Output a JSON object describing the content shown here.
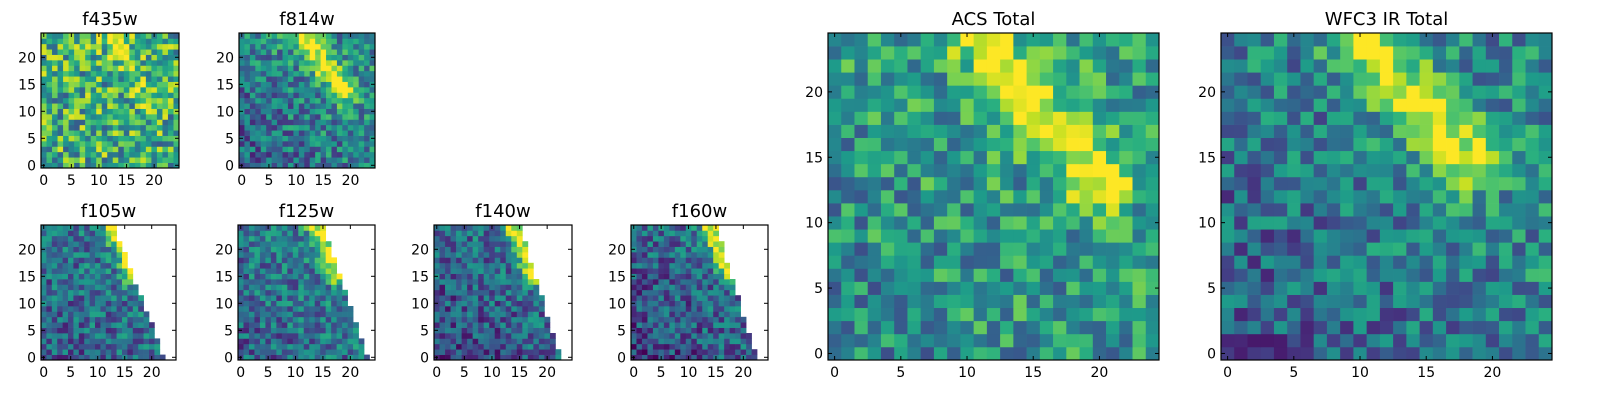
{
  "figure": {
    "background": "#ffffff",
    "colormap": "viridis"
  },
  "chart_data": [
    {
      "type": "heatmap",
      "title": "f435w",
      "colormap": "viridis",
      "grid_size": 25,
      "xlim": [
        -0.5,
        24.5
      ],
      "ylim": [
        -0.5,
        24.5
      ],
      "xticks": [
        0,
        5,
        10,
        15,
        20
      ],
      "xticklabels": [
        "0",
        "5",
        "10",
        "15",
        "20"
      ],
      "yticks": [
        0,
        5,
        10,
        15,
        20
      ],
      "yticklabels": [
        "0",
        "5",
        "10",
        "15",
        "20"
      ],
      "grid": false,
      "masked_region": "none",
      "pattern": "mostly uniform speckled noise (mean ~0.6) with a faint bright diagonal band near (x=14..16, y=18..21)"
    },
    {
      "type": "heatmap",
      "title": "f814w",
      "colormap": "viridis",
      "grid_size": 25,
      "xlim": [
        -0.5,
        24.5
      ],
      "ylim": [
        -0.5,
        24.5
      ],
      "xticks": [
        0,
        5,
        10,
        15,
        20
      ],
      "xticklabels": [
        "0",
        "5",
        "10",
        "15",
        "20"
      ],
      "yticks": [
        0,
        5,
        10,
        15,
        20
      ],
      "yticklabels": [
        "0",
        "5",
        "10",
        "15",
        "20"
      ],
      "grid": false,
      "masked_region": "none",
      "pattern": "bright yellow diagonal arc running from (x=12, y=24) to (x=18, y=14); dimmer teal/blue elsewhere"
    },
    {
      "type": "heatmap",
      "title": "f105w",
      "colormap": "viridis",
      "grid_size": 25,
      "xlim": [
        -0.5,
        24.5
      ],
      "ylim": [
        -0.5,
        24.5
      ],
      "xticks": [
        0,
        5,
        10,
        15,
        20
      ],
      "xticklabels": [
        "0",
        "5",
        "10",
        "15",
        "20"
      ],
      "yticks": [
        0,
        5,
        10,
        15,
        20
      ],
      "yticklabels": [
        "0",
        "5",
        "10",
        "15",
        "20"
      ],
      "grid": false,
      "masked_region": "upper-right triangle blank (white) beyond diagonal from (13,24) to (22,0)",
      "pattern": "yellow band near the diagonal edge around (x=12..16, y=16..23)"
    },
    {
      "type": "heatmap",
      "title": "f125w",
      "colormap": "viridis",
      "grid_size": 25,
      "xlim": [
        -0.5,
        24.5
      ],
      "ylim": [
        -0.5,
        24.5
      ],
      "xticks": [
        0,
        5,
        10,
        15,
        20
      ],
      "xticklabels": [
        "0",
        "5",
        "10",
        "15",
        "20"
      ],
      "yticks": [
        0,
        5,
        10,
        15,
        20
      ],
      "yticklabels": [
        "0",
        "5",
        "10",
        "15",
        "20"
      ],
      "grid": false,
      "masked_region": "upper-right triangle blank (white) beyond diagonal from (15,24) to (23,0)",
      "pattern": "yellow band near the diagonal edge around (x=13..17, y=16..23)"
    },
    {
      "type": "heatmap",
      "title": "f140w",
      "colormap": "viridis",
      "grid_size": 25,
      "xlim": [
        -0.5,
        24.5
      ],
      "ylim": [
        -0.5,
        24.5
      ],
      "xticks": [
        0,
        5,
        10,
        15,
        20
      ],
      "xticklabels": [
        "0",
        "5",
        "10",
        "15",
        "20"
      ],
      "yticks": [
        0,
        5,
        10,
        15,
        20
      ],
      "yticklabels": [
        "0",
        "5",
        "10",
        "15",
        "20"
      ],
      "grid": false,
      "masked_region": "upper-right triangle blank (white) beyond diagonal from (15,24) to (22,0)",
      "pattern": "yellow band near the diagonal edge around (x=13..17, y=15..22)"
    },
    {
      "type": "heatmap",
      "title": "f160w",
      "colormap": "viridis",
      "grid_size": 25,
      "xlim": [
        -0.5,
        24.5
      ],
      "ylim": [
        -0.5,
        24.5
      ],
      "xticks": [
        0,
        5,
        10,
        15,
        20
      ],
      "xticklabels": [
        "0",
        "5",
        "10",
        "15",
        "20"
      ],
      "yticks": [
        0,
        5,
        10,
        15,
        20
      ],
      "yticklabels": [
        "0",
        "5",
        "10",
        "15",
        "20"
      ],
      "grid": false,
      "masked_region": "upper-right triangle blank (white) beyond diagonal from (15,24) to (22,0)",
      "pattern": "yellow band near the diagonal edge around (x=13..17, y=15..23)"
    },
    {
      "type": "heatmap",
      "title": "ACS Total",
      "colormap": "viridis",
      "grid_size": 25,
      "xlim": [
        -0.5,
        24.5
      ],
      "ylim": [
        -0.5,
        24.5
      ],
      "xticks": [
        0,
        5,
        10,
        15,
        20
      ],
      "xticklabels": [
        "0",
        "5",
        "10",
        "15",
        "20"
      ],
      "yticks": [
        0,
        5,
        10,
        15,
        20
      ],
      "yticklabels": [
        "0",
        "5",
        "10",
        "15",
        "20"
      ],
      "grid": false,
      "masked_region": "none",
      "pattern": "bright yellow diagonal arc from (x=11, y=24) to (x=20, y=13); teal/green elsewhere"
    },
    {
      "type": "heatmap",
      "title": "WFC3 IR Total",
      "colormap": "viridis",
      "grid_size": 25,
      "xlim": [
        -0.5,
        24.5
      ],
      "ylim": [
        -0.5,
        24.5
      ],
      "xticks": [
        0,
        5,
        10,
        15,
        20
      ],
      "xticklabels": [
        "0",
        "5",
        "10",
        "15",
        "20"
      ],
      "yticks": [
        0,
        5,
        10,
        15,
        20
      ],
      "yticklabels": [
        "0",
        "5",
        "10",
        "15",
        "20"
      ],
      "grid": false,
      "masked_region": "none",
      "pattern": "bright yellow diagonal arc from (x=10, y=24) to (x=18, y=15); darker blue/purple patches lower-left"
    }
  ]
}
